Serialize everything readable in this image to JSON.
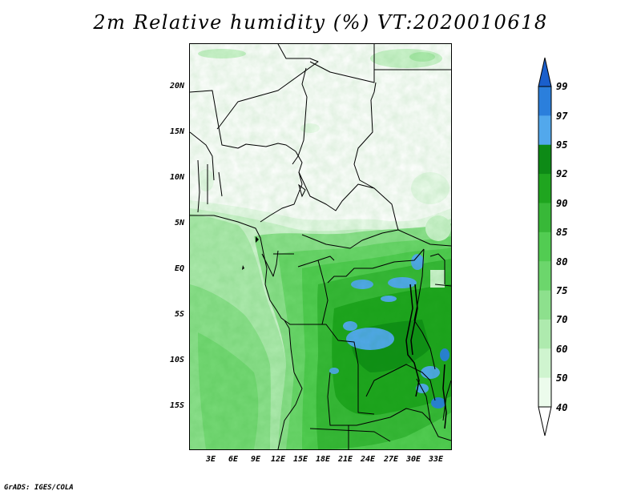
{
  "title": "2m Relative humidity (%) VT:2020010618",
  "lat_labels": [
    "20N",
    "15N",
    "10N",
    "5N",
    "EQ",
    "5S",
    "10S",
    "15S"
  ],
  "lon_labels": [
    "3E",
    "6E",
    "9E",
    "12E",
    "15E",
    "18E",
    "21E",
    "24E",
    "27E",
    "30E",
    "33E"
  ],
  "colorbar": {
    "levels": [
      "99",
      "97",
      "95",
      "92",
      "90",
      "85",
      "80",
      "75",
      "70",
      "60",
      "50",
      "40"
    ],
    "colors": [
      "#1a5fcc",
      "#2b7fdc",
      "#52a8ec",
      "#0d8a16",
      "#1fa51f",
      "#38b838",
      "#52cc52",
      "#6cd66c",
      "#8de08d",
      "#aeeaae",
      "#cff4cf",
      "#ecfbec"
    ]
  },
  "credit": "GrADS: IGES/COLA"
}
